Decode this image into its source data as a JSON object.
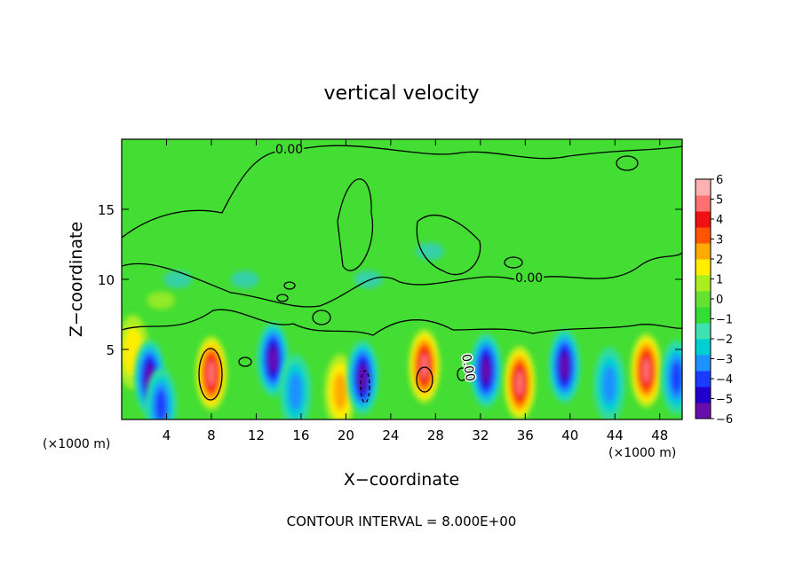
{
  "chart_data": {
    "type": "heatmap",
    "title": "vertical velocity",
    "xlabel": "X−coordinate",
    "ylabel": "Z−coordinate",
    "x_unit_left": "(×1000 m)",
    "x_unit_right": "(×1000 m)",
    "footer": "CONTOUR INTERVAL = 8.000E+00",
    "xlim": [
      0,
      50
    ],
    "ylim": [
      0,
      20
    ],
    "x_ticks": [
      4,
      8,
      12,
      16,
      20,
      24,
      28,
      32,
      36,
      40,
      44,
      48
    ],
    "x_tick_labels": [
      "4",
      "8",
      "12",
      "16",
      "20",
      "24",
      "28",
      "32",
      "36",
      "40",
      "44",
      "48"
    ],
    "y_ticks": [
      5,
      10,
      15
    ],
    "y_tick_labels": [
      "5",
      "10",
      "15"
    ],
    "colorbar": {
      "range": [
        -6,
        6
      ],
      "tick_labels": [
        "6",
        "5",
        "4",
        "3",
        "2",
        "1",
        "0",
        "−1",
        "−2",
        "−3",
        "−4",
        "−5",
        "−6"
      ],
      "colors": [
        "#6a0dad",
        "#2200cc",
        "#1a3cff",
        "#1e90ff",
        "#00ced1",
        "#40e0b0",
        "#33dd33",
        "#66e033",
        "#aaee22",
        "#ffee00",
        "#ffaa00",
        "#ff5500",
        "#ee1111",
        "#ff7070",
        "#ffb0b0"
      ]
    },
    "contour_labels": [
      "0.00",
      "0.00",
      "0.00"
    ],
    "cells": [
      {
        "x": 1.0,
        "z": 4.8,
        "w": 2.2
      },
      {
        "x": 2.5,
        "z": 3.0,
        "w": -6
      },
      {
        "x": 3.5,
        "z": 1.0,
        "w": -4
      },
      {
        "x": 8.0,
        "z": 3.3,
        "w": 6
      },
      {
        "x": 13.5,
        "z": 4.3,
        "w": -5.5
      },
      {
        "x": 15.5,
        "z": 2.0,
        "w": -3
      },
      {
        "x": 19.5,
        "z": 2.0,
        "w": 3
      },
      {
        "x": 21.5,
        "z": 3.0,
        "w": -6
      },
      {
        "x": 27.0,
        "z": 3.8,
        "w": 6
      },
      {
        "x": 32.5,
        "z": 3.5,
        "w": -6
      },
      {
        "x": 35.5,
        "z": 2.6,
        "w": 6
      },
      {
        "x": 39.5,
        "z": 3.8,
        "w": -5.5
      },
      {
        "x": 43.5,
        "z": 2.5,
        "w": -3
      },
      {
        "x": 46.8,
        "z": 3.5,
        "w": 5.5
      },
      {
        "x": 49.5,
        "z": 3.0,
        "w": -4
      },
      {
        "x": 3.5,
        "z": 8.5,
        "w": 1.2
      },
      {
        "x": 27.5,
        "z": 12.0,
        "w": -1.8
      },
      {
        "x": 22.0,
        "z": 10.0,
        "w": -0.8
      },
      {
        "x": 11.0,
        "z": 10.0,
        "w": -0.6
      },
      {
        "x": 5.0,
        "z": 10.0,
        "w": -1.0
      }
    ]
  }
}
